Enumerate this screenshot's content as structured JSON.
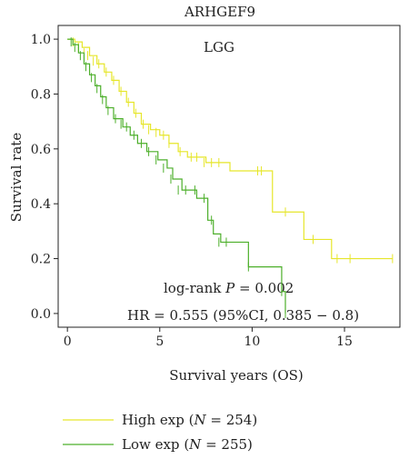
{
  "chart_data": {
    "type": "line",
    "title": "ARHGEF9",
    "subtitle": "LGG",
    "xlabel": "Survival years (OS)",
    "ylabel": "Survival rate",
    "xlim": [
      -0.5,
      18
    ],
    "ylim": [
      -0.05,
      1.05
    ],
    "xticks": [
      0,
      5,
      10,
      15
    ],
    "yticks": [
      0.0,
      0.2,
      0.4,
      0.6,
      0.8,
      1.0
    ],
    "ytick_labels": [
      "0.0",
      "0.2",
      "0.4",
      "0.6",
      "0.8",
      "1.0"
    ],
    "step": true,
    "annotations": {
      "logrank_prefix": "log-rank ",
      "logrank_p_symbol": "P",
      "logrank_value": " = 0.002",
      "hr_text": "HR = 0.555 (95%CI, 0.385 − 0.8)"
    },
    "series": [
      {
        "name": "High exp",
        "n_symbol": "N",
        "n_value": "254",
        "color": "#e6e62a",
        "x": [
          0,
          0.4,
          0.8,
          1.2,
          1.6,
          2.0,
          2.4,
          2.8,
          3.2,
          3.6,
          4.0,
          4.5,
          5.0,
          5.5,
          6.0,
          6.5,
          7.5,
          8.8,
          10.3,
          11.1,
          11.5,
          12.8,
          13.2,
          14.3,
          17.6
        ],
        "y": [
          1.0,
          0.99,
          0.97,
          0.94,
          0.91,
          0.88,
          0.85,
          0.81,
          0.77,
          0.73,
          0.69,
          0.67,
          0.65,
          0.62,
          0.59,
          0.57,
          0.55,
          0.52,
          0.52,
          0.37,
          0.37,
          0.27,
          0.27,
          0.2,
          0.2
        ],
        "censor_x": [
          0.3,
          0.6,
          0.9,
          1.1,
          1.4,
          1.7,
          2.1,
          2.5,
          2.9,
          3.3,
          3.7,
          4.1,
          4.4,
          4.8,
          5.2,
          5.5,
          6.1,
          6.7,
          7.0,
          7.4,
          7.8,
          8.2,
          10.3,
          10.5,
          11.8,
          13.3,
          14.6,
          15.3,
          17.6
        ],
        "censor_y": [
          0.99,
          0.97,
          0.95,
          0.94,
          0.92,
          0.91,
          0.88,
          0.85,
          0.81,
          0.77,
          0.73,
          0.69,
          0.67,
          0.66,
          0.65,
          0.62,
          0.59,
          0.57,
          0.57,
          0.55,
          0.55,
          0.55,
          0.52,
          0.52,
          0.37,
          0.27,
          0.2,
          0.2,
          0.2
        ]
      },
      {
        "name": "Low exp",
        "n_symbol": "N",
        "n_value": "255",
        "color": "#4caf2a",
        "x": [
          0,
          0.3,
          0.6,
          0.9,
          1.2,
          1.5,
          1.8,
          2.1,
          2.5,
          3.0,
          3.4,
          3.8,
          4.3,
          4.9,
          5.4,
          5.7,
          6.2,
          7.0,
          7.6,
          7.9,
          8.3,
          9.8,
          11.6,
          11.8
        ],
        "y": [
          1.0,
          0.98,
          0.95,
          0.91,
          0.87,
          0.83,
          0.79,
          0.75,
          0.71,
          0.68,
          0.65,
          0.62,
          0.59,
          0.56,
          0.53,
          0.49,
          0.45,
          0.42,
          0.34,
          0.29,
          0.26,
          0.17,
          0.08,
          0.0
        ],
        "censor_x": [
          0.2,
          0.4,
          0.7,
          1.0,
          1.3,
          1.6,
          1.9,
          2.2,
          2.6,
          2.9,
          3.2,
          3.6,
          4.0,
          4.4,
          4.8,
          5.2,
          5.6,
          6.0,
          6.4,
          6.9,
          7.4,
          7.8,
          8.2,
          8.6,
          9.8,
          11.6,
          11.8
        ],
        "censor_y": [
          0.99,
          0.97,
          0.94,
          0.9,
          0.86,
          0.82,
          0.78,
          0.74,
          0.71,
          0.69,
          0.68,
          0.65,
          0.62,
          0.59,
          0.56,
          0.53,
          0.49,
          0.45,
          0.45,
          0.45,
          0.42,
          0.34,
          0.26,
          0.26,
          0.17,
          0.08,
          0.0
        ]
      }
    ]
  }
}
